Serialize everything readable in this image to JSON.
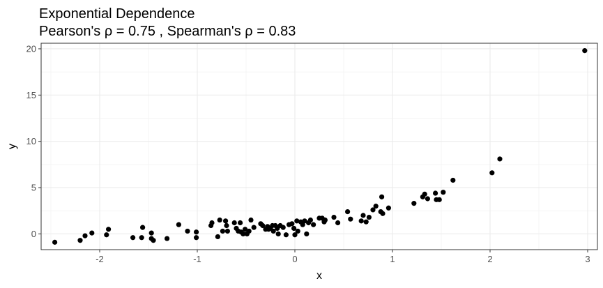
{
  "chart_data": {
    "type": "scatter",
    "title": "Exponential Dependence",
    "subtitle": "Pearson's ρ = 0.75 , Spearman's ρ = 0.83",
    "xlabel": "x",
    "ylabel": "y",
    "xlim": [
      -2.6,
      3.1
    ],
    "ylim": [
      -1.7,
      20.6
    ],
    "x_ticks": [
      -2,
      -1,
      0,
      1,
      2,
      3
    ],
    "x_tick_labels": [
      "-2",
      "-1",
      "0",
      "1",
      "2",
      "3"
    ],
    "y_ticks": [
      0,
      5,
      10,
      15,
      20
    ],
    "y_tick_labels": [
      "0",
      "5",
      "10",
      "15",
      "20"
    ],
    "grid": true,
    "point_color": "#000000",
    "points": [
      {
        "x": -2.46,
        "y": -0.9
      },
      {
        "x": -2.2,
        "y": -0.7
      },
      {
        "x": -2.15,
        "y": -0.2
      },
      {
        "x": -2.08,
        "y": 0.1
      },
      {
        "x": -1.93,
        "y": -0.1
      },
      {
        "x": -1.91,
        "y": 0.5
      },
      {
        "x": -1.66,
        "y": -0.4
      },
      {
        "x": -1.57,
        "y": -0.4
      },
      {
        "x": -1.56,
        "y": 0.7
      },
      {
        "x": -1.47,
        "y": 0.1
      },
      {
        "x": -1.47,
        "y": -0.5
      },
      {
        "x": -1.45,
        "y": -0.7
      },
      {
        "x": -1.31,
        "y": -0.5
      },
      {
        "x": -1.19,
        "y": 1.0
      },
      {
        "x": -1.1,
        "y": 0.3
      },
      {
        "x": -1.01,
        "y": -0.4
      },
      {
        "x": -1.01,
        "y": 0.2
      },
      {
        "x": -0.86,
        "y": 0.9
      },
      {
        "x": -0.85,
        "y": 1.2
      },
      {
        "x": -0.79,
        "y": -0.3
      },
      {
        "x": -0.77,
        "y": 1.5
      },
      {
        "x": -0.74,
        "y": 0.3
      },
      {
        "x": -0.71,
        "y": 1.4
      },
      {
        "x": -0.7,
        "y": 0.9
      },
      {
        "x": -0.69,
        "y": 0.3
      },
      {
        "x": -0.62,
        "y": 1.2
      },
      {
        "x": -0.6,
        "y": 0.6
      },
      {
        "x": -0.58,
        "y": 0.3
      },
      {
        "x": -0.56,
        "y": 1.2
      },
      {
        "x": -0.55,
        "y": 0.2
      },
      {
        "x": -0.53,
        "y": 0.0
      },
      {
        "x": -0.51,
        "y": 0.5
      },
      {
        "x": -0.49,
        "y": 0.0
      },
      {
        "x": -0.47,
        "y": 0.3
      },
      {
        "x": -0.45,
        "y": 1.5
      },
      {
        "x": -0.42,
        "y": 0.7
      },
      {
        "x": -0.35,
        "y": 1.1
      },
      {
        "x": -0.33,
        "y": 0.9
      },
      {
        "x": -0.3,
        "y": 0.5
      },
      {
        "x": -0.28,
        "y": 0.8
      },
      {
        "x": -0.27,
        "y": 0.5
      },
      {
        "x": -0.25,
        "y": 0.6
      },
      {
        "x": -0.23,
        "y": 0.9
      },
      {
        "x": -0.22,
        "y": 0.3
      },
      {
        "x": -0.2,
        "y": 0.9
      },
      {
        "x": -0.18,
        "y": 0.6
      },
      {
        "x": -0.17,
        "y": 0.0
      },
      {
        "x": -0.15,
        "y": 0.9
      },
      {
        "x": -0.12,
        "y": 0.7
      },
      {
        "x": -0.09,
        "y": -0.1
      },
      {
        "x": -0.06,
        "y": 1.0
      },
      {
        "x": -0.03,
        "y": 1.1
      },
      {
        "x": -0.01,
        "y": 0.6
      },
      {
        "x": 0.0,
        "y": -0.1
      },
      {
        "x": 0.02,
        "y": 1.4
      },
      {
        "x": 0.03,
        "y": 0.3
      },
      {
        "x": 0.06,
        "y": 1.3
      },
      {
        "x": 0.08,
        "y": 1.0
      },
      {
        "x": 0.1,
        "y": 1.4
      },
      {
        "x": 0.12,
        "y": 0.0
      },
      {
        "x": 0.14,
        "y": 1.2
      },
      {
        "x": 0.16,
        "y": 1.5
      },
      {
        "x": 0.19,
        "y": 1.0
      },
      {
        "x": 0.25,
        "y": 1.7
      },
      {
        "x": 0.28,
        "y": 1.7
      },
      {
        "x": 0.3,
        "y": 1.3
      },
      {
        "x": 0.31,
        "y": 1.5
      },
      {
        "x": 0.4,
        "y": 1.8
      },
      {
        "x": 0.44,
        "y": 1.2
      },
      {
        "x": 0.54,
        "y": 2.4
      },
      {
        "x": 0.57,
        "y": 1.6
      },
      {
        "x": 0.68,
        "y": 1.4
      },
      {
        "x": 0.7,
        "y": 2.0
      },
      {
        "x": 0.73,
        "y": 1.3
      },
      {
        "x": 0.76,
        "y": 1.8
      },
      {
        "x": 0.8,
        "y": 2.6
      },
      {
        "x": 0.83,
        "y": 3.0
      },
      {
        "x": 0.88,
        "y": 2.4
      },
      {
        "x": 0.89,
        "y": 4.0
      },
      {
        "x": 0.9,
        "y": 2.2
      },
      {
        "x": 0.96,
        "y": 2.8
      },
      {
        "x": 1.22,
        "y": 3.3
      },
      {
        "x": 1.31,
        "y": 4.0
      },
      {
        "x": 1.33,
        "y": 4.3
      },
      {
        "x": 1.36,
        "y": 3.8
      },
      {
        "x": 1.44,
        "y": 4.4
      },
      {
        "x": 1.45,
        "y": 3.7
      },
      {
        "x": 1.48,
        "y": 3.7
      },
      {
        "x": 1.52,
        "y": 4.5
      },
      {
        "x": 1.62,
        "y": 5.8
      },
      {
        "x": 2.02,
        "y": 6.6
      },
      {
        "x": 2.1,
        "y": 8.1
      },
      {
        "x": 2.97,
        "y": 19.8
      }
    ]
  }
}
